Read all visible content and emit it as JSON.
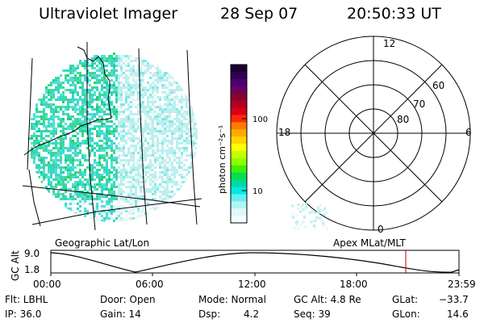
{
  "header": {
    "instrument": "Ultraviolet Imager",
    "date": "28 Sep 07",
    "time": "20:50:33 UT"
  },
  "colorbar": {
    "unit_label": "photon cm⁻²s⁻¹",
    "tick_100": "100",
    "tick_10": "10",
    "colors_top_to_bottom": [
      "#1a0033",
      "#300050",
      "#4b0070",
      "#6a0060",
      "#8a0030",
      "#b00020",
      "#d8001a",
      "#ff2a00",
      "#ff7a00",
      "#ffaa00",
      "#ffd400",
      "#ffff00",
      "#c8ff00",
      "#8cff00",
      "#40f000",
      "#00e050",
      "#00d8a0",
      "#00e8e0",
      "#60f0f0",
      "#b0f4f4",
      "#e0f8f8",
      "#f4fcfc"
    ]
  },
  "polar": {
    "labels": {
      "top": "12",
      "left": "18",
      "right": "6",
      "bottom": "0",
      "ring60": "60",
      "ring70": "70",
      "ring80": "80"
    }
  },
  "map_labels": {
    "left": "Geographic Lat/Lon",
    "right": "Apex MLat/MLT"
  },
  "orbit": {
    "y_title": "GC Alt",
    "y_ticks": [
      "9.0",
      "1.8"
    ],
    "x_ticks": [
      "00:00",
      "06:00",
      "12:00",
      "18:00",
      "23:59"
    ],
    "marker_color": "#c00000"
  },
  "status": {
    "filter": "Flt: LBHL",
    "ip": "IP: 36.0",
    "door": "Door: Open",
    "gain": "Gain: 14",
    "mode": "Mode: Normal",
    "dsp_label": "Dsp:",
    "dsp_value": "4.2",
    "gcalt": "GC Alt: 4.8 Re",
    "seq": "Seq: 39",
    "glat_label": "GLat:",
    "glat_value": "−33.7",
    "glon_label": "GLon:",
    "glon_value": "14.6"
  },
  "image_palette": [
    "#3ad6c8",
    "#52e0d8",
    "#7ee8e6",
    "#9ff0ee",
    "#b8f0ef",
    "#c4ecec",
    "#3cd890",
    "#20d070",
    "#58e0b0",
    "#e4f6f6"
  ]
}
